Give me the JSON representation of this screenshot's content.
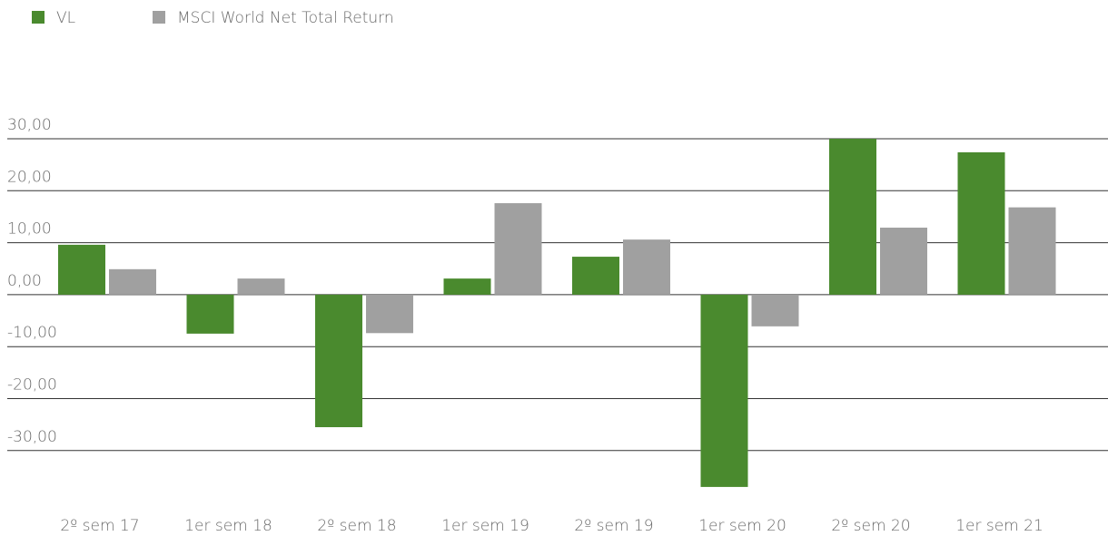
{
  "chart_data": {
    "type": "bar",
    "categories": [
      "2º sem 17",
      "1er sem 18",
      "2º sem 18",
      "1er sem 19",
      "2º sem 19",
      "1er sem 20",
      "2º sem 20",
      "1er sem 21"
    ],
    "series": [
      {
        "name": "VL",
        "color": "#4a8a2e",
        "values": [
          9.6,
          -7.5,
          -25.5,
          3.1,
          7.3,
          -37,
          30,
          27.4
        ]
      },
      {
        "name": "MSCI World Net Total Return",
        "color": "#a0a0a0",
        "values": [
          4.9,
          3.1,
          -7.4,
          17.6,
          10.6,
          -6.1,
          12.9,
          16.8
        ]
      }
    ],
    "ylim": [
      -38,
      30
    ],
    "yticks": [
      {
        "value": 30,
        "label": "30,00"
      },
      {
        "value": 20,
        "label": "20,00"
      },
      {
        "value": 10,
        "label": "10,00"
      },
      {
        "value": 0,
        "label": "0,00"
      },
      {
        "value": -10,
        "label": "-10,00"
      },
      {
        "value": -20,
        "label": "-20,00"
      },
      {
        "value": -30,
        "label": "-30,00"
      }
    ],
    "grid": true,
    "legend": "top-left"
  }
}
